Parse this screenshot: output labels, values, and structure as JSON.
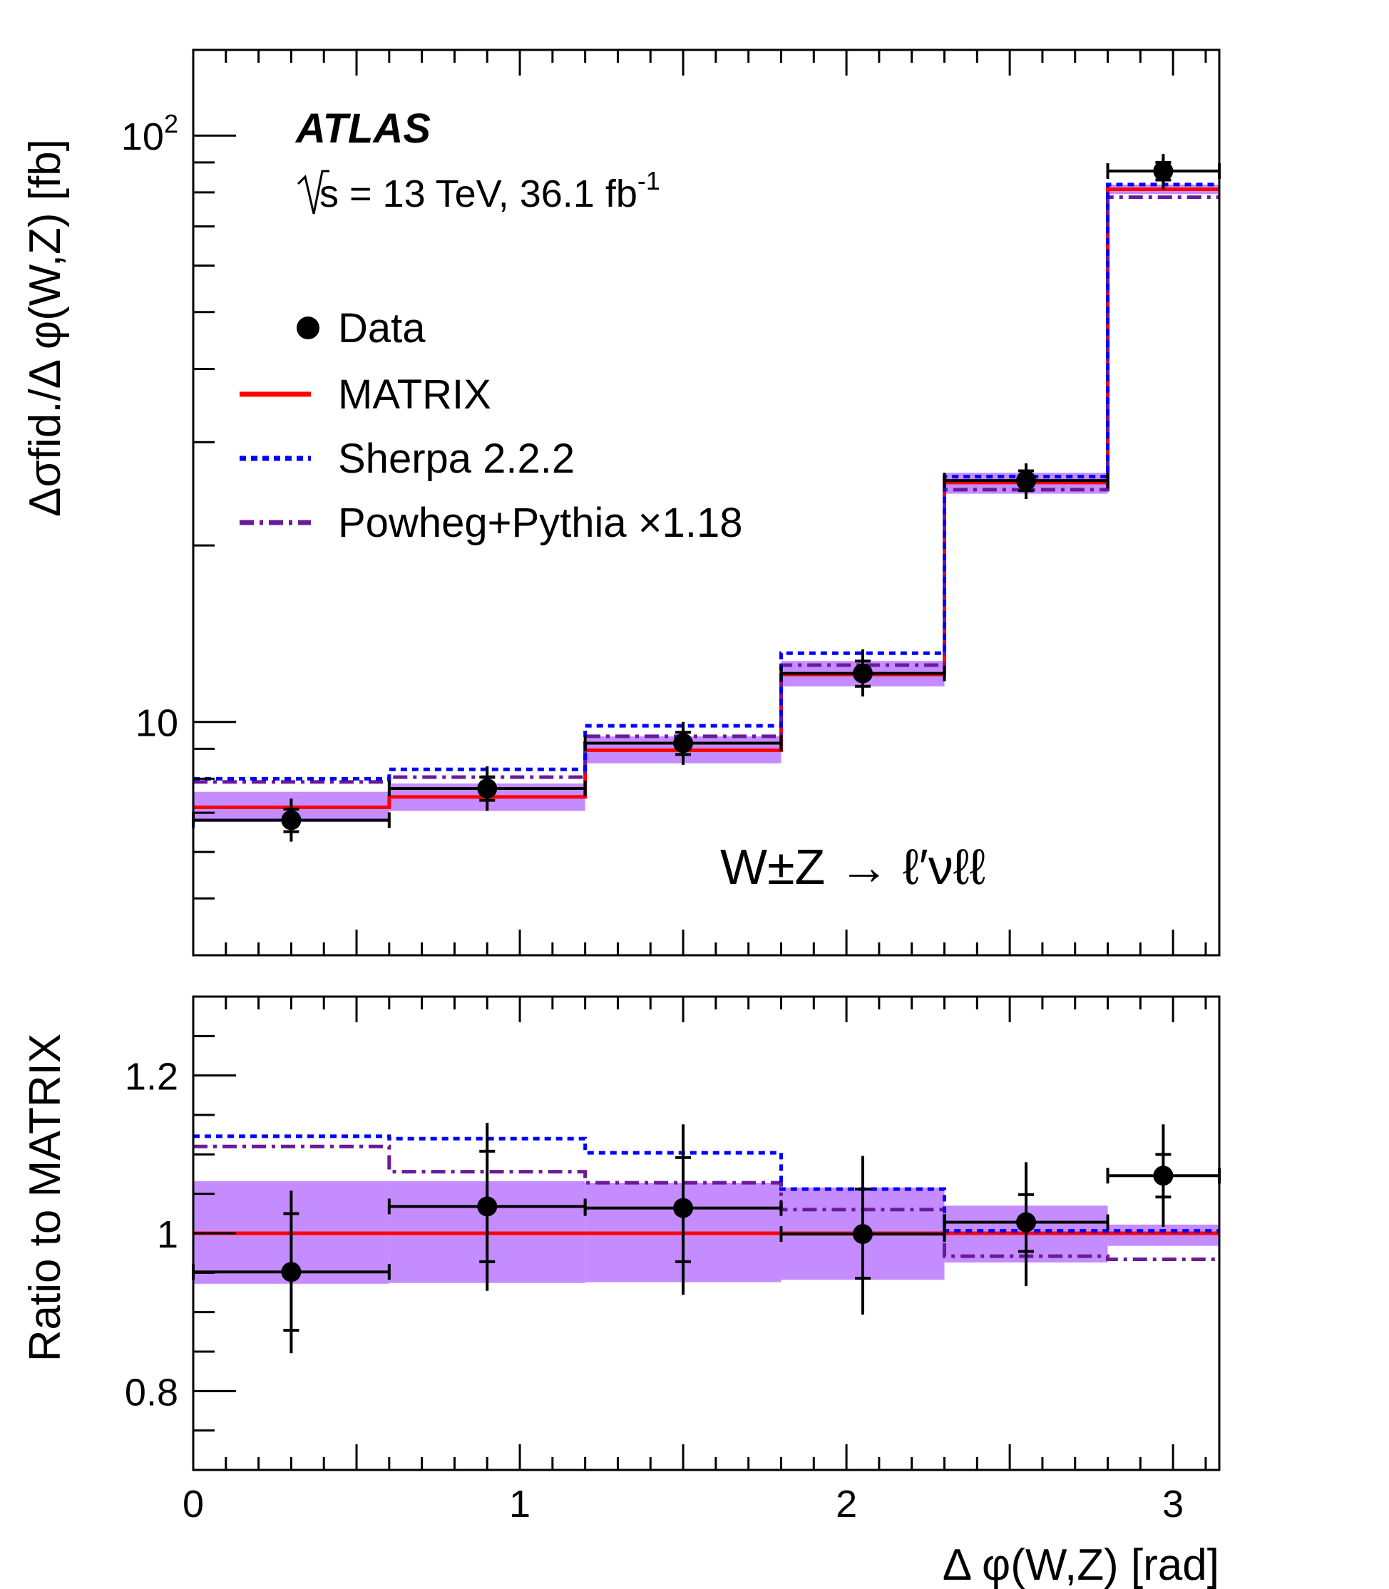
{
  "chart_data": [
    {
      "panel": "main",
      "type": "histogram",
      "yscale": "log",
      "ylim": [
        4.0,
        140.0
      ],
      "xlim": [
        0,
        3.1416
      ],
      "ylabel": "Δσfid./Δ φ(W,Z)  [fb]",
      "yticks": [
        {
          "v": 100,
          "base": "10",
          "exp": "2"
        },
        {
          "v": 10,
          "base": "10",
          "exp": ""
        }
      ],
      "bin_edges": [
        0,
        0.6,
        1.2,
        1.8,
        2.3,
        2.8,
        3.1416
      ],
      "experiment_label": "ATLAS",
      "energy_label": "s = 13 TeV, 36.1 fb",
      "lumi_exponent": "-1",
      "process_label": "W±Z → ℓ′νℓℓ",
      "legend": {
        "position": "upper-left",
        "entries": [
          {
            "key": "data",
            "label": "Data"
          },
          {
            "key": "matrix",
            "label": "MATRIX"
          },
          {
            "key": "sherpa",
            "label": "Sherpa 2.2.2"
          },
          {
            "key": "powheg",
            "label": "Powheg+Pythia ×1.18"
          }
        ]
      },
      "data": {
        "x": [
          0.3,
          0.9,
          1.5,
          2.05,
          2.55,
          2.97
        ],
        "y": [
          6.8,
          7.7,
          9.2,
          12.1,
          25.8,
          87.0
        ],
        "stat_lo": [
          6.5,
          7.35,
          8.8,
          11.5,
          24.8,
          84.0
        ],
        "stat_hi": [
          7.1,
          8.05,
          9.6,
          12.7,
          26.8,
          90.0
        ],
        "tot_lo": [
          6.25,
          7.05,
          8.45,
          11.05,
          24.0,
          81.0
        ],
        "tot_hi": [
          7.4,
          8.4,
          10.0,
          13.3,
          27.6,
          93.0
        ]
      },
      "matrix": {
        "values": [
          7.15,
          7.45,
          8.95,
          12.05,
          25.6,
          81.0
        ],
        "band_lo": [
          6.75,
          7.05,
          8.5,
          11.5,
          24.5,
          79.5
        ],
        "band_hi": [
          7.6,
          7.85,
          9.45,
          12.7,
          26.6,
          82.5
        ]
      },
      "sherpa": {
        "values": [
          8.0,
          8.3,
          9.85,
          13.1,
          26.2,
          82.5
        ]
      },
      "powheg": {
        "values": [
          7.9,
          8.05,
          9.45,
          12.5,
          24.9,
          78.5
        ]
      }
    },
    {
      "panel": "ratio",
      "type": "histogram",
      "ylim": [
        0.7,
        1.3
      ],
      "xlim": [
        0,
        3.1416
      ],
      "ylabel": "Ratio to MATRIX",
      "xlabel": "Δ φ(W,Z) [rad]",
      "yticks": [
        {
          "v": 0.8,
          "label": "0.8"
        },
        {
          "v": 1.0,
          "label": "1"
        },
        {
          "v": 1.2,
          "label": "1.2"
        }
      ],
      "xticks": [
        {
          "v": 0,
          "label": "0"
        },
        {
          "v": 1,
          "label": "1"
        },
        {
          "v": 2,
          "label": "2"
        },
        {
          "v": 3,
          "label": "3"
        }
      ],
      "bin_edges": [
        0,
        0.6,
        1.2,
        1.8,
        2.3,
        2.8,
        3.1416
      ],
      "data": {
        "x": [
          0.3,
          0.9,
          1.5,
          2.05,
          2.55,
          2.97
        ],
        "y": [
          0.951,
          1.034,
          1.032,
          0.999,
          1.014,
          1.073
        ],
        "stat_lo": [
          0.877,
          0.964,
          0.964,
          0.943,
          0.977,
          1.046
        ],
        "stat_hi": [
          1.025,
          1.104,
          1.096,
          1.056,
          1.049,
          1.1
        ],
        "tot_lo": [
          0.848,
          0.927,
          0.922,
          0.897,
          0.933,
          1.008
        ],
        "tot_hi": [
          1.054,
          1.14,
          1.138,
          1.098,
          1.09,
          1.138
        ]
      },
      "matrix": {
        "values": [
          1.0,
          1.0,
          1.0,
          1.0,
          1.0,
          1.0
        ],
        "band_lo": [
          0.936,
          0.937,
          0.938,
          0.941,
          0.963,
          0.984
        ],
        "band_hi": [
          1.066,
          1.066,
          1.064,
          1.058,
          1.035,
          1.011
        ]
      },
      "sherpa": {
        "values": [
          1.123,
          1.12,
          1.102,
          1.056,
          1.003,
          1.003
        ]
      },
      "powheg": {
        "values": [
          1.11,
          1.078,
          1.064,
          1.03,
          0.971,
          0.967
        ]
      }
    }
  ],
  "colors": {
    "matrix": "#ff0000",
    "sherpa": "#0000ff",
    "powheg": "#6a1a9a",
    "band": "#c58cff",
    "data": "#000000"
  }
}
